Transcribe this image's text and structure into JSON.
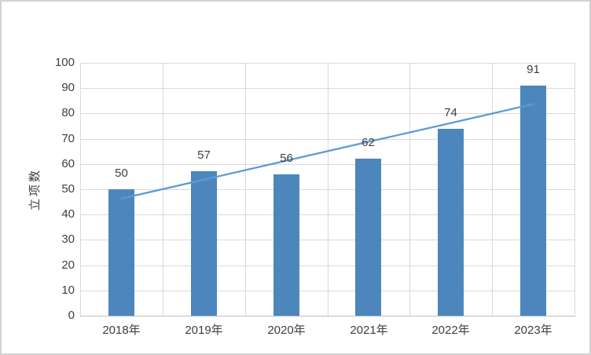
{
  "chart_data": {
    "type": "bar",
    "title": "",
    "categories": [
      "2018年",
      "2019年",
      "2020年",
      "2021年",
      "2022年",
      "2023年"
    ],
    "values": [
      50,
      57,
      56,
      62,
      74,
      91
    ],
    "xlabel": "",
    "ylabel": "立项数",
    "ylim": [
      0,
      100
    ],
    "ytick_interval": 10,
    "yticks": [
      100,
      90,
      80,
      70,
      60,
      50,
      40,
      30,
      20,
      10,
      0
    ],
    "grid": "horizontal and vertical major gridlines",
    "legend": "none",
    "trendline": {
      "type": "linear",
      "values_at_categories": [
        46.3,
        53.8,
        61.3,
        68.8,
        76.2,
        83.7
      ],
      "color": "#5B9BD5"
    },
    "colors": {
      "bar_fill": "#4D86BD",
      "trendline": "#5B9BD5",
      "gridline": "#D9D9D9",
      "axis_line": "#BFBFBF",
      "text": "#3F3F3F",
      "frame_border": "#D2D2D2"
    }
  }
}
